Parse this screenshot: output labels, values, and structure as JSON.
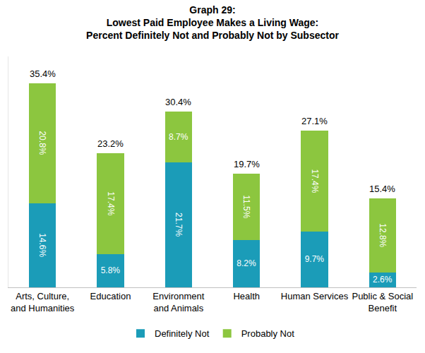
{
  "chart_data": {
    "type": "bar",
    "title": "Graph 29:\nLowest Paid Employee Makes a Living Wage:\nPercent Definitely Not and Probably Not by Subsector",
    "categories": [
      "Arts, Culture,\nand Humanities",
      "Education",
      "Environment\nand Animals",
      "Health",
      "Human Services",
      "Public & Social\nBenefit"
    ],
    "series": [
      {
        "name": "Definitely Not",
        "color": "#1b9cb8",
        "values": [
          14.6,
          5.8,
          21.7,
          8.2,
          9.7,
          2.6
        ],
        "value_labels": [
          "14.6%",
          "5.8%",
          "21.7%",
          "8.2%",
          "9.7%",
          "2.6%"
        ]
      },
      {
        "name": "Probably Not",
        "color": "#8cc63f",
        "values": [
          20.8,
          17.4,
          8.7,
          11.5,
          17.4,
          12.8
        ],
        "value_labels": [
          "20.8%",
          "17.4%",
          "8.7%",
          "11.5%",
          "17.4%",
          "12.8%"
        ]
      }
    ],
    "totals": {
      "values": [
        35.4,
        23.2,
        30.4,
        19.7,
        27.1,
        15.4
      ],
      "value_labels": [
        "35.4%",
        "23.2%",
        "30.4%",
        "19.7%",
        "27.1%",
        "15.4%"
      ]
    },
    "ylim": [
      0,
      40
    ],
    "yticks": [],
    "stacked": true,
    "data_labels": true,
    "grid": false,
    "legend": "bottom",
    "tick_labels": "x"
  }
}
